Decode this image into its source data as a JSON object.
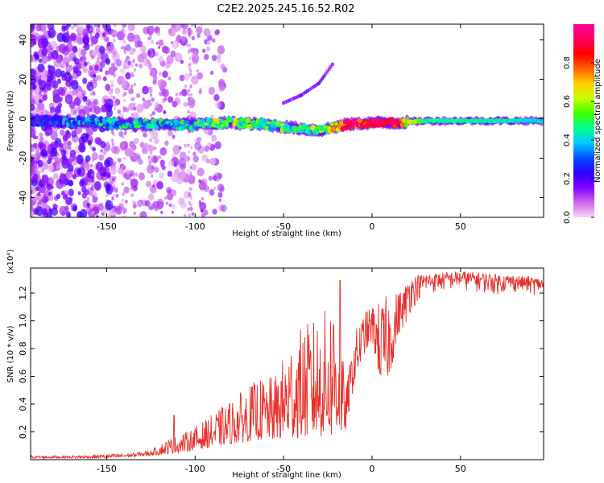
{
  "title": "C2E2.2025.245.16.52.R02",
  "chart_data": [
    {
      "type": "heatmap",
      "title": "C2E2.2025.245.16.52.R02",
      "xlabel": "Height of straight line (km)",
      "ylabel": "Frequency (Hz)",
      "xlim": [
        -193,
        97
      ],
      "ylim": [
        -50,
        48
      ],
      "x_ticks": [
        -150,
        -100,
        -50,
        0,
        50
      ],
      "y_ticks": [
        -40,
        -20,
        0,
        20,
        40
      ],
      "colorbar": {
        "label": "Normalized spectral amplitude",
        "range": [
          0,
          1
        ],
        "ticks": [
          "0.0",
          "0.2",
          "0.4",
          "0.6",
          "0.8"
        ],
        "tick_values": [
          0.0,
          0.2,
          0.4,
          0.6,
          0.8
        ],
        "colors": [
          "#f2d9f7",
          "#cc66ee",
          "#8000ff",
          "#2b00ff",
          "#0050ff",
          "#00c8ff",
          "#00ff90",
          "#40ff00",
          "#c8ff00",
          "#ffd000",
          "#ff6000",
          "#ff0000",
          "#ff0060",
          "#ff0090"
        ]
      },
      "main_band": [
        {
          "x": -190,
          "f": -1,
          "amp": 0.25
        },
        {
          "x": -160,
          "f": -2,
          "amp": 0.35
        },
        {
          "x": -120,
          "f": -3,
          "amp": 0.4
        },
        {
          "x": -100,
          "f": -3,
          "amp": 0.45
        },
        {
          "x": -80,
          "f": -2,
          "amp": 0.55
        },
        {
          "x": -60,
          "f": -3,
          "amp": 0.5
        },
        {
          "x": -40,
          "f": -5,
          "amp": 0.45
        },
        {
          "x": -30,
          "f": -6,
          "amp": 0.5
        },
        {
          "x": -15,
          "f": -3,
          "amp": 0.85
        },
        {
          "x": 0,
          "f": -2,
          "amp": 0.9
        },
        {
          "x": 15,
          "f": -2,
          "amp": 0.8
        },
        {
          "x": 30,
          "f": -1,
          "amp": 0.45
        },
        {
          "x": 60,
          "f": -1,
          "amp": 0.45
        },
        {
          "x": 97,
          "f": -1,
          "amp": 0.4
        }
      ],
      "harmonic_branch": [
        {
          "x": -50,
          "f": 8
        },
        {
          "x": -40,
          "f": 12
        },
        {
          "x": -30,
          "f": 18
        },
        {
          "x": -22,
          "f": 28
        }
      ]
    },
    {
      "type": "line",
      "xlabel": "Height of straight line (km)",
      "ylabel": "SNR (10 * v/v)",
      "y_multiplier": "(x10⁴)",
      "xlim": [
        -193,
        97
      ],
      "ylim": [
        0,
        1.38
      ],
      "x_ticks": [
        -150,
        -100,
        -50,
        0,
        50
      ],
      "y_ticks": [
        0.2,
        0.4,
        0.6,
        0.8,
        1.0,
        1.2
      ],
      "series": [
        {
          "name": "SNR",
          "color": "#e8302a",
          "x": [
            -193,
            -170,
            -150,
            -135,
            -125,
            -115,
            -105,
            -95,
            -85,
            -75,
            -65,
            -55,
            -45,
            -35,
            -25,
            -20,
            -15,
            -10,
            -5,
            0,
            5,
            10,
            15,
            20,
            25,
            30,
            40,
            50,
            60,
            70,
            80,
            90,
            97
          ],
          "envelope_low": [
            0.01,
            0.01,
            0.01,
            0.02,
            0.03,
            0.04,
            0.06,
            0.08,
            0.1,
            0.12,
            0.14,
            0.14,
            0.15,
            0.16,
            0.16,
            0.15,
            0.2,
            0.55,
            0.75,
            0.85,
            0.55,
            0.6,
            0.9,
            1.0,
            1.12,
            1.18,
            1.2,
            1.22,
            1.2,
            1.18,
            1.2,
            1.18,
            1.2
          ],
          "envelope_high": [
            0.03,
            0.03,
            0.04,
            0.05,
            0.07,
            0.15,
            0.2,
            0.28,
            0.38,
            0.48,
            0.58,
            0.6,
            0.9,
            1.0,
            1.1,
            1.29,
            0.5,
            0.92,
            1.05,
            1.12,
            1.15,
            1.2,
            1.22,
            1.3,
            1.33,
            1.34,
            1.35,
            1.36,
            1.35,
            1.34,
            1.33,
            1.32,
            1.3
          ],
          "peaks": [
            {
              "x": -112,
              "y": 0.32
            },
            {
              "x": -18,
              "y": 1.29
            }
          ]
        }
      ]
    }
  ]
}
